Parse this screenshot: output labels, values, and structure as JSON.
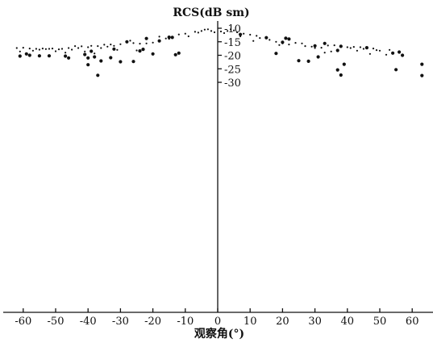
{
  "chart_data": {
    "type": "scatter",
    "title": "",
    "xlabel": "观察角(°)",
    "ylabel": "RCS(dB sm)",
    "xlim": [
      -64,
      66
    ],
    "ylim": [
      -30.5,
      -9
    ],
    "x_ticks": [
      -60,
      -50,
      -40,
      -30,
      -20,
      -10,
      0,
      10,
      20,
      30,
      40,
      50,
      60
    ],
    "x_tick_labels": [
      "-60",
      "-50",
      "-40",
      "-30",
      "-20",
      "-10",
      "0",
      "10",
      "20",
      "30",
      "40",
      "50",
      "60"
    ],
    "y_ticks": [
      -10,
      -15,
      -20,
      -25,
      -30
    ],
    "y_tick_labels": [
      "-10",
      "-15",
      "-20",
      "-25",
      "-30"
    ],
    "grid": false,
    "legend": "none",
    "colors": {
      "marker": "#111111",
      "axis": "#111111"
    },
    "series": [
      {
        "marker": "small-dot",
        "points": [
          [
            -7,
            -11.3
          ],
          [
            -6,
            -11.6
          ],
          [
            -5,
            -11.0
          ],
          [
            -4,
            -10.5
          ],
          [
            -3,
            -10.4
          ],
          [
            -2,
            -11.0
          ],
          [
            -1,
            -11.5
          ],
          [
            1,
            -11.2
          ],
          [
            2,
            -11.8
          ],
          [
            3,
            -11.0
          ],
          [
            4,
            -10.4
          ],
          [
            5,
            -10.8
          ],
          [
            6,
            -11.5
          ],
          [
            -10,
            -12.0
          ],
          [
            -12,
            -12.3
          ],
          [
            8,
            -12.0
          ],
          [
            10,
            -12.4
          ],
          [
            12,
            -12.8
          ],
          [
            -9,
            -13.0
          ],
          [
            7,
            -13.0
          ],
          [
            -16,
            -13.8
          ],
          [
            -15,
            -13.9
          ],
          [
            -18,
            -13.1
          ],
          [
            13,
            -13.6
          ],
          [
            15,
            -13.8
          ],
          [
            16,
            -14.3
          ],
          [
            11,
            -14.7
          ],
          [
            -20,
            -15.3
          ],
          [
            -22,
            -15.6
          ],
          [
            -24,
            -15.7
          ],
          [
            -26,
            -15.5
          ],
          [
            -28,
            -15.1
          ],
          [
            -30,
            -15.9
          ],
          [
            -27,
            -14.6
          ],
          [
            -33,
            -16.0
          ],
          [
            -35,
            -16.1
          ],
          [
            -34,
            -16.8
          ],
          [
            -37,
            -16.6
          ],
          [
            -39,
            -16.5
          ],
          [
            -36,
            -17.3
          ],
          [
            -40,
            -17.0
          ],
          [
            -42,
            -16.7
          ],
          [
            -44,
            -16.6
          ],
          [
            -43,
            -17.3
          ],
          [
            -46,
            -17.3
          ],
          [
            -45,
            -17.9
          ],
          [
            -48,
            -17.6
          ],
          [
            -49,
            -17.8
          ],
          [
            -51,
            -17.5
          ],
          [
            -52,
            -17.6
          ],
          [
            -53,
            -17.7
          ],
          [
            -54,
            -17.5
          ],
          [
            -55,
            -17.9
          ],
          [
            -56,
            -17.6
          ],
          [
            -58,
            -17.5
          ],
          [
            -60,
            -17.2
          ],
          [
            -62,
            -17.3
          ],
          [
            -61,
            -18.6
          ],
          [
            -57,
            -18.3
          ],
          [
            -50,
            -18.5
          ],
          [
            -47,
            -19.0
          ],
          [
            -41,
            -18.6
          ],
          [
            -38,
            -19.3
          ],
          [
            -31,
            -18.0
          ],
          [
            -32,
            -16.5
          ],
          [
            -25,
            -18.2
          ],
          [
            -23,
            -17.6
          ],
          [
            18,
            -15.0
          ],
          [
            20,
            -15.6
          ],
          [
            22,
            -16.0
          ],
          [
            19,
            -16.2
          ],
          [
            24,
            -15.4
          ],
          [
            26,
            -15.6
          ],
          [
            27,
            -16.6
          ],
          [
            29,
            -16.8
          ],
          [
            30,
            -17.3
          ],
          [
            32,
            -17.2
          ],
          [
            34,
            -16.4
          ],
          [
            36,
            -16.3
          ],
          [
            38,
            -16.6
          ],
          [
            40,
            -17.0
          ],
          [
            41,
            -17.3
          ],
          [
            42,
            -16.9
          ],
          [
            44,
            -17.0
          ],
          [
            45,
            -17.6
          ],
          [
            46,
            -17.2
          ],
          [
            48,
            -17.5
          ],
          [
            49,
            -18.1
          ],
          [
            50,
            -18.3
          ],
          [
            53,
            -18.0
          ],
          [
            43,
            -18.3
          ],
          [
            47,
            -19.5
          ],
          [
            52,
            -19.8
          ],
          [
            33,
            -19.0
          ],
          [
            35,
            -18.6
          ]
        ]
      },
      {
        "marker": "large-dot",
        "points": [
          [
            -22,
            -13.8
          ],
          [
            -15,
            -13.3
          ],
          [
            -14,
            -13.4
          ],
          [
            -18,
            -14.7
          ],
          [
            -28,
            -15.0
          ],
          [
            -23,
            -17.8
          ],
          [
            -24,
            -18.4
          ],
          [
            -32,
            -17.7
          ],
          [
            -39,
            -18.5
          ],
          [
            -41,
            -19.7
          ],
          [
            -38,
            -20.6
          ],
          [
            -52,
            -20.2
          ],
          [
            -55,
            -20.2
          ],
          [
            -58,
            -20.0
          ],
          [
            -61,
            -20.3
          ],
          [
            -59,
            -19.5
          ],
          [
            -47,
            -20.3
          ],
          [
            -46,
            -21.0
          ],
          [
            -40,
            -21.0
          ],
          [
            -33,
            -20.9
          ],
          [
            -30,
            -22.4
          ],
          [
            -26,
            -22.3
          ],
          [
            -36,
            -22.1
          ],
          [
            -40,
            -23.5
          ],
          [
            -37,
            -27.4
          ],
          [
            -20,
            -19.5
          ],
          [
            -12,
            -19.2
          ],
          [
            -13,
            -19.8
          ],
          [
            7,
            -12.3
          ],
          [
            15,
            -13.5
          ],
          [
            20,
            -15.2
          ],
          [
            22,
            -14.0
          ],
          [
            21,
            -13.7
          ],
          [
            30,
            -16.5
          ],
          [
            38,
            -16.7
          ],
          [
            46,
            -17.2
          ],
          [
            54,
            -19.2
          ],
          [
            56,
            -18.8
          ],
          [
            57,
            -20.0
          ],
          [
            18,
            -19.3
          ],
          [
            25,
            -22.0
          ],
          [
            28,
            -22.2
          ],
          [
            31,
            -20.6
          ],
          [
            37,
            -25.4
          ],
          [
            38,
            -27.3
          ],
          [
            39,
            -23.3
          ],
          [
            55,
            -25.3
          ],
          [
            63,
            -23.3
          ],
          [
            63,
            -27.5
          ],
          [
            37,
            -18.2
          ],
          [
            33,
            -15.6
          ]
        ]
      }
    ]
  }
}
